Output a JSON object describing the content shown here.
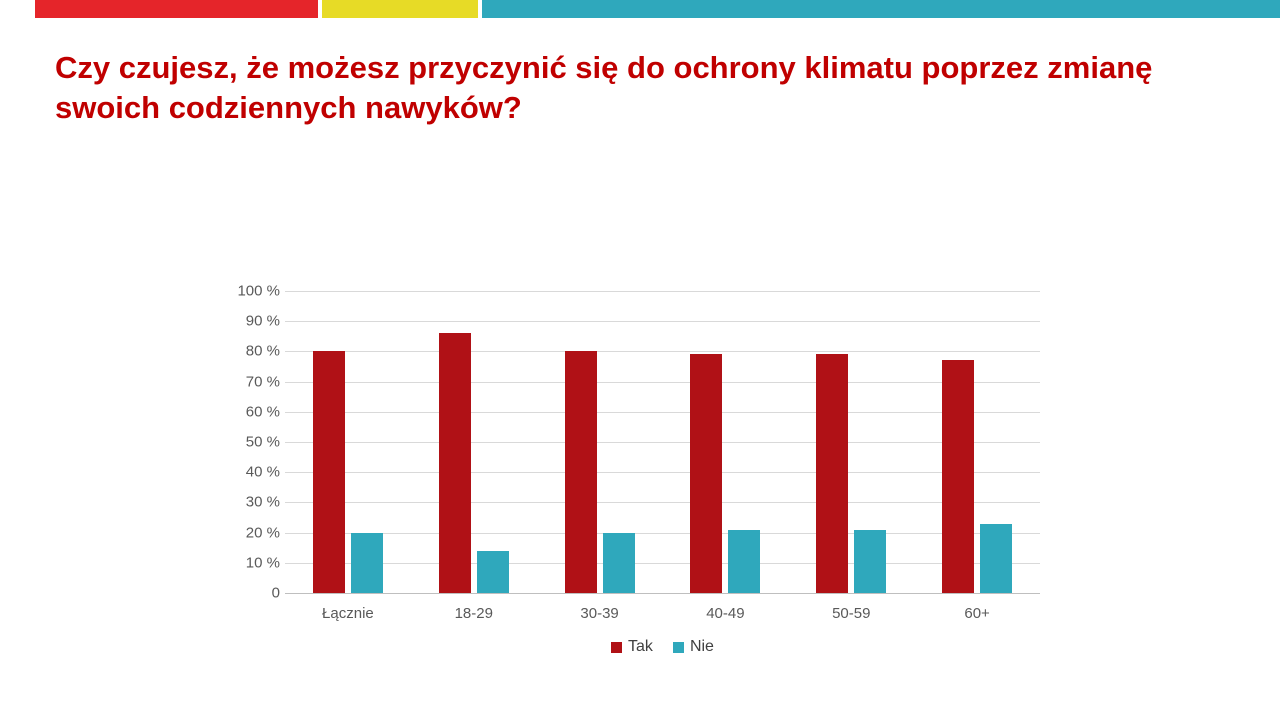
{
  "title": "Czy czujesz, że możesz przyczynić się do ochrony klimatu poprzez zmianę swoich codziennych nawyków?",
  "top_strip": {
    "red": "#e5252a",
    "yellow": "#e7db26",
    "teal": "#2fa8bc"
  },
  "chart_data": {
    "type": "bar",
    "categories": [
      "Łącznie",
      "18-29",
      "30-39",
      "40-49",
      "50-59",
      "60+"
    ],
    "series": [
      {
        "name": "Tak",
        "color": "#b01116",
        "values": [
          80,
          86,
          80,
          79,
          79,
          77
        ]
      },
      {
        "name": "Nie",
        "color": "#2fa8bc",
        "values": [
          20,
          14,
          20,
          21,
          21,
          23
        ]
      }
    ],
    "ylim": [
      0,
      100
    ],
    "ytick_step": 10,
    "ytick_suffix": " %",
    "zero_tick_label": "0",
    "grid": true,
    "legend_position": "bottom"
  }
}
